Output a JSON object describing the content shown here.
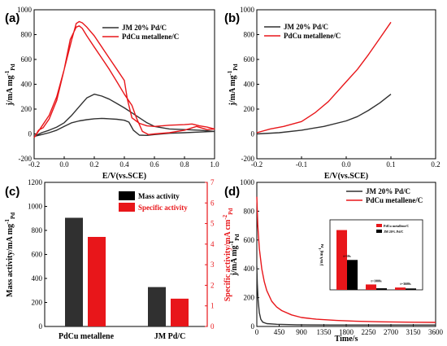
{
  "colors": {
    "jm": "#303030",
    "pdcu": "#e8161a",
    "axis_red": "#e8161a"
  },
  "chart_data": [
    {
      "id": "a",
      "panel_label": "(a)",
      "type": "line",
      "xlabel": "E/V(vs.SCE)",
      "ylabel": "j/mA mg",
      "ylabel_sup": "-1",
      "ylabel_sub": "Pd",
      "xlim": [
        -0.2,
        1.0
      ],
      "ylim": [
        -200,
        1000
      ],
      "xticks": [
        -0.2,
        0.0,
        0.2,
        0.4,
        0.6,
        0.8,
        1.0
      ],
      "xtick_labels": [
        "-0.2",
        "0.0",
        "0.2",
        "0.4",
        "0.6",
        "0.8",
        "1.0"
      ],
      "yticks": [
        -200,
        0,
        200,
        400,
        600,
        800,
        1000
      ],
      "ytick_labels": [
        "-200",
        "0",
        "200",
        "400",
        "600",
        "800",
        "1000"
      ],
      "legend_position": "top-right",
      "series": [
        {
          "name": "JM 20% Pd/C",
          "color_key": "jm",
          "x": [
            -0.2,
            -0.15,
            -0.1,
            -0.05,
            0.0,
            0.05,
            0.1,
            0.15,
            0.2,
            0.25,
            0.3,
            0.35,
            0.4,
            0.43,
            0.46,
            0.5,
            0.55,
            0.6,
            0.7,
            0.8,
            0.9,
            1.0,
            0.9,
            0.8,
            0.7,
            0.6,
            0.55,
            0.5,
            0.45,
            0.4,
            0.35,
            0.3,
            0.25,
            0.2,
            0.15,
            0.1,
            0.05,
            0.0,
            -0.05,
            -0.1,
            -0.15,
            -0.2
          ],
          "y": [
            -20,
            -5,
            10,
            30,
            60,
            90,
            105,
            115,
            122,
            125,
            122,
            118,
            110,
            95,
            30,
            -10,
            -12,
            -5,
            5,
            10,
            15,
            20,
            30,
            35,
            40,
            60,
            90,
            130,
            170,
            210,
            245,
            280,
            305,
            320,
            290,
            220,
            150,
            90,
            55,
            30,
            10,
            -20
          ]
        },
        {
          "name": "PdCu metallene/C",
          "color_key": "pdcu",
          "x": [
            -0.2,
            -0.17,
            -0.14,
            -0.1,
            -0.05,
            0.0,
            0.04,
            0.08,
            0.1,
            0.12,
            0.15,
            0.2,
            0.25,
            0.3,
            0.35,
            0.4,
            0.45,
            0.48,
            0.52,
            0.56,
            0.6,
            0.7,
            0.8,
            0.88,
            0.95,
            1.0,
            0.95,
            0.9,
            0.85,
            0.8,
            0.7,
            0.6,
            0.55,
            0.5,
            0.45,
            0.42,
            0.4,
            0.35,
            0.3,
            0.25,
            0.2,
            0.15,
            0.12,
            0.1,
            0.08,
            0.05,
            0.0,
            -0.05,
            -0.1,
            -0.15,
            -0.2
          ],
          "y": [
            -30,
            30,
            50,
            120,
            270,
            520,
            760,
            860,
            870,
            850,
            790,
            700,
            610,
            520,
            420,
            320,
            230,
            130,
            20,
            -5,
            0,
            10,
            30,
            60,
            35,
            40,
            55,
            65,
            80,
            75,
            70,
            60,
            65,
            85,
            130,
            280,
            430,
            520,
            610,
            700,
            790,
            860,
            895,
            905,
            890,
            760,
            520,
            300,
            150,
            60,
            -30
          ]
        }
      ]
    },
    {
      "id": "b",
      "panel_label": "(b)",
      "type": "line",
      "xlabel": "E/V(vs.SCE)",
      "ylabel": "j/mA mg",
      "ylabel_sup": "-1",
      "ylabel_sub": "Pd",
      "xlim": [
        -0.2,
        0.2
      ],
      "ylim": [
        -200,
        1000
      ],
      "xticks": [
        -0.2,
        -0.1,
        0.0,
        0.1,
        0.2
      ],
      "xtick_labels": [
        "-0.2",
        "-0.1",
        "0.0",
        "0.1",
        "0.2"
      ],
      "yticks": [
        -200,
        0,
        200,
        400,
        600,
        800,
        1000
      ],
      "ytick_labels": [
        "-200",
        "0",
        "200",
        "400",
        "600",
        "800",
        "1000"
      ],
      "legend_position": "top-left",
      "series": [
        {
          "name": "JM 20% Pd/C",
          "color_key": "jm",
          "x": [
            -0.2,
            -0.15,
            -0.1,
            -0.05,
            0.0,
            0.025,
            0.05,
            0.075,
            0.1
          ],
          "y": [
            0,
            10,
            30,
            60,
            105,
            140,
            190,
            250,
            320
          ]
        },
        {
          "name": "PdCu metallene/C",
          "color_key": "pdcu",
          "x": [
            -0.2,
            -0.17,
            -0.14,
            -0.1,
            -0.07,
            -0.04,
            0.0,
            0.025,
            0.05,
            0.075,
            0.1
          ],
          "y": [
            10,
            40,
            60,
            100,
            170,
            260,
            420,
            520,
            640,
            770,
            900
          ]
        }
      ]
    },
    {
      "id": "c",
      "panel_label": "(c)",
      "type": "bar",
      "categories": [
        "PdCu metallene",
        "JM Pd/C"
      ],
      "ylabel": "Mass activity/mA mg",
      "ylabel_sup": "-1",
      "ylabel_sub": "Pd",
      "y2label": "Specific activity/mA cm",
      "y2label_sup": "-2",
      "y2label_sub": "Pd",
      "ylim": [
        0,
        1200
      ],
      "y2lim": [
        0,
        7
      ],
      "yticks": [
        0,
        200,
        400,
        600,
        800,
        1000,
        1200
      ],
      "ytick_labels": [
        "0",
        "200",
        "400",
        "600",
        "800",
        "1000",
        "1200"
      ],
      "y2ticks": [
        0,
        1,
        2,
        3,
        4,
        5,
        6,
        7
      ],
      "y2tick_labels": [
        "0",
        "1",
        "2",
        "3",
        "4",
        "5",
        "6",
        "7"
      ],
      "legend_position": "top-right",
      "series": [
        {
          "name": "Mass activity",
          "color_key": "jm",
          "axis": "left",
          "values": [
            905,
            328
          ]
        },
        {
          "name": "Specific activity",
          "color_key": "pdcu",
          "axis": "right",
          "values": [
            4.35,
            1.35
          ]
        }
      ]
    },
    {
      "id": "d",
      "panel_label": "(d)",
      "type": "line",
      "xlabel": "Time/s",
      "ylabel": "j/mA mg",
      "ylabel_sup": "-1",
      "ylabel_sub": "Pd",
      "xlim": [
        0,
        3600
      ],
      "ylim": [
        0,
        1000
      ],
      "xticks": [
        0,
        450,
        900,
        1350,
        1800,
        2250,
        2700,
        3150,
        3600
      ],
      "xtick_labels": [
        "0",
        "450",
        "900",
        "1350",
        "1800",
        "2250",
        "2700",
        "3150",
        "3600"
      ],
      "yticks": [
        0,
        200,
        400,
        600,
        800,
        1000
      ],
      "ytick_labels": [
        "0",
        "200",
        "400",
        "600",
        "800",
        "1000"
      ],
      "legend_position": "top-right",
      "series": [
        {
          "name": "JM 20% Pd/C",
          "color_key": "jm",
          "x": [
            0,
            10,
            25,
            50,
            80,
            120,
            200,
            400,
            800,
            1500,
            2500,
            3600
          ],
          "y": [
            420,
            300,
            190,
            95,
            50,
            30,
            20,
            15,
            12,
            10,
            10,
            10
          ]
        },
        {
          "name": "PdCu metallene/C",
          "color_key": "pdcu",
          "x": [
            0,
            20,
            50,
            100,
            150,
            200,
            300,
            400,
            500,
            700,
            900,
            1200,
            1600,
            2000,
            2500,
            3000,
            3600
          ],
          "y": [
            900,
            700,
            540,
            400,
            310,
            250,
            175,
            135,
            110,
            80,
            62,
            50,
            42,
            36,
            32,
            30,
            28
          ]
        }
      ],
      "inset": {
        "type": "bar",
        "ylabel": "j/mA mg",
        "ylabel_sup": "-1",
        "ylabel_sub": "Pd",
        "legend": [
          "PdCu metallene/C",
          "JM 20% Pd/C"
        ],
        "groups": [
          {
            "label": "t=10s",
            "values": [
              780,
              390
            ]
          },
          {
            "label": "t=1000s",
            "values": [
              70,
              20
            ]
          },
          {
            "label": "t=3600s",
            "values": [
              30,
              18
            ]
          }
        ],
        "ylim": [
          0,
          850
        ]
      }
    }
  ]
}
